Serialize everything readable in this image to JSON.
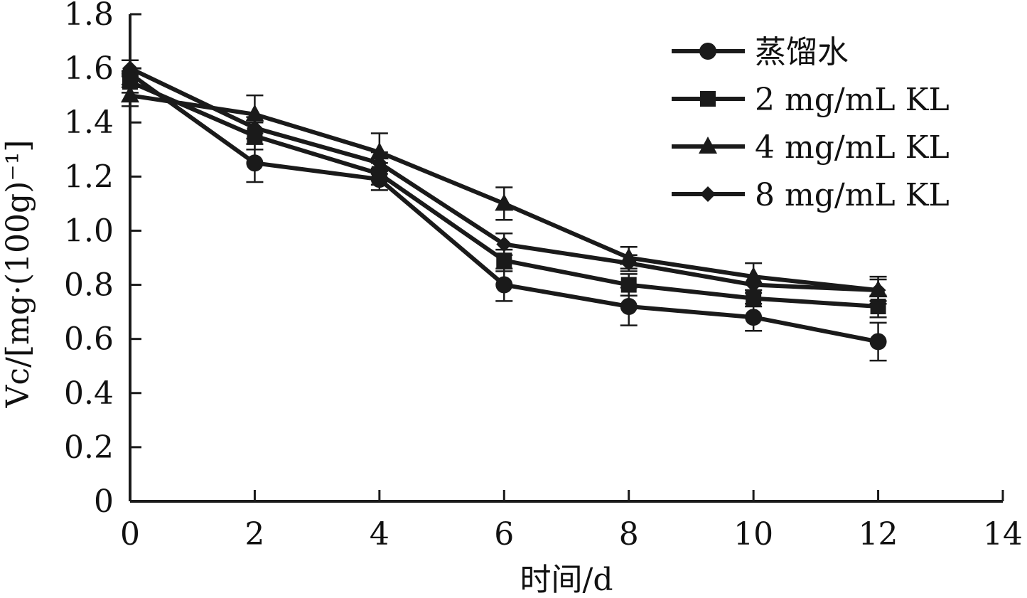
{
  "chart_data": {
    "type": "line",
    "xlabel": "时间/d",
    "ylabel": "Vc/[mg·(100g)⁻¹]",
    "xlim": [
      0,
      14
    ],
    "ylim": [
      0,
      1.8
    ],
    "xticks": [
      0,
      2,
      4,
      6,
      8,
      10,
      12,
      14
    ],
    "yticks": [
      0,
      0.2,
      0.4,
      0.6,
      0.8,
      1.0,
      1.2,
      1.4,
      1.6,
      1.8
    ],
    "ytick_labels": [
      "0",
      "0.2",
      "0.4",
      "0.6",
      "0.8",
      "1.0",
      "1.2",
      "1.4",
      "1.6",
      "1.8"
    ],
    "grid": false,
    "legend_position": "top-right",
    "color": "#1a1a1a",
    "x": [
      0,
      2,
      4,
      6,
      8,
      10,
      12
    ],
    "series": [
      {
        "name": "蒸馏水",
        "marker": "circle",
        "values": [
          1.58,
          1.25,
          1.19,
          0.8,
          0.72,
          0.68,
          0.59
        ],
        "errors": [
          0.05,
          0.07,
          0.04,
          0.06,
          0.07,
          0.05,
          0.07
        ]
      },
      {
        "name": "2 mg/mL KL",
        "marker": "square",
        "values": [
          1.55,
          1.35,
          1.21,
          0.89,
          0.8,
          0.75,
          0.72
        ],
        "errors": [
          0.04,
          0.05,
          0.04,
          0.04,
          0.04,
          0.03,
          0.04
        ]
      },
      {
        "name": "4 mg/mL KL",
        "marker": "triangle",
        "values": [
          1.5,
          1.43,
          1.29,
          1.1,
          0.9,
          0.83,
          0.78
        ],
        "errors": [
          0.04,
          0.07,
          0.07,
          0.06,
          0.04,
          0.05,
          0.05
        ]
      },
      {
        "name": "8 mg/mL KL",
        "marker": "diamond",
        "values": [
          1.6,
          1.38,
          1.25,
          0.95,
          0.88,
          0.8,
          0.78
        ],
        "errors": [
          0.03,
          0.04,
          0.04,
          0.04,
          0.03,
          0.03,
          0.04
        ]
      }
    ]
  }
}
